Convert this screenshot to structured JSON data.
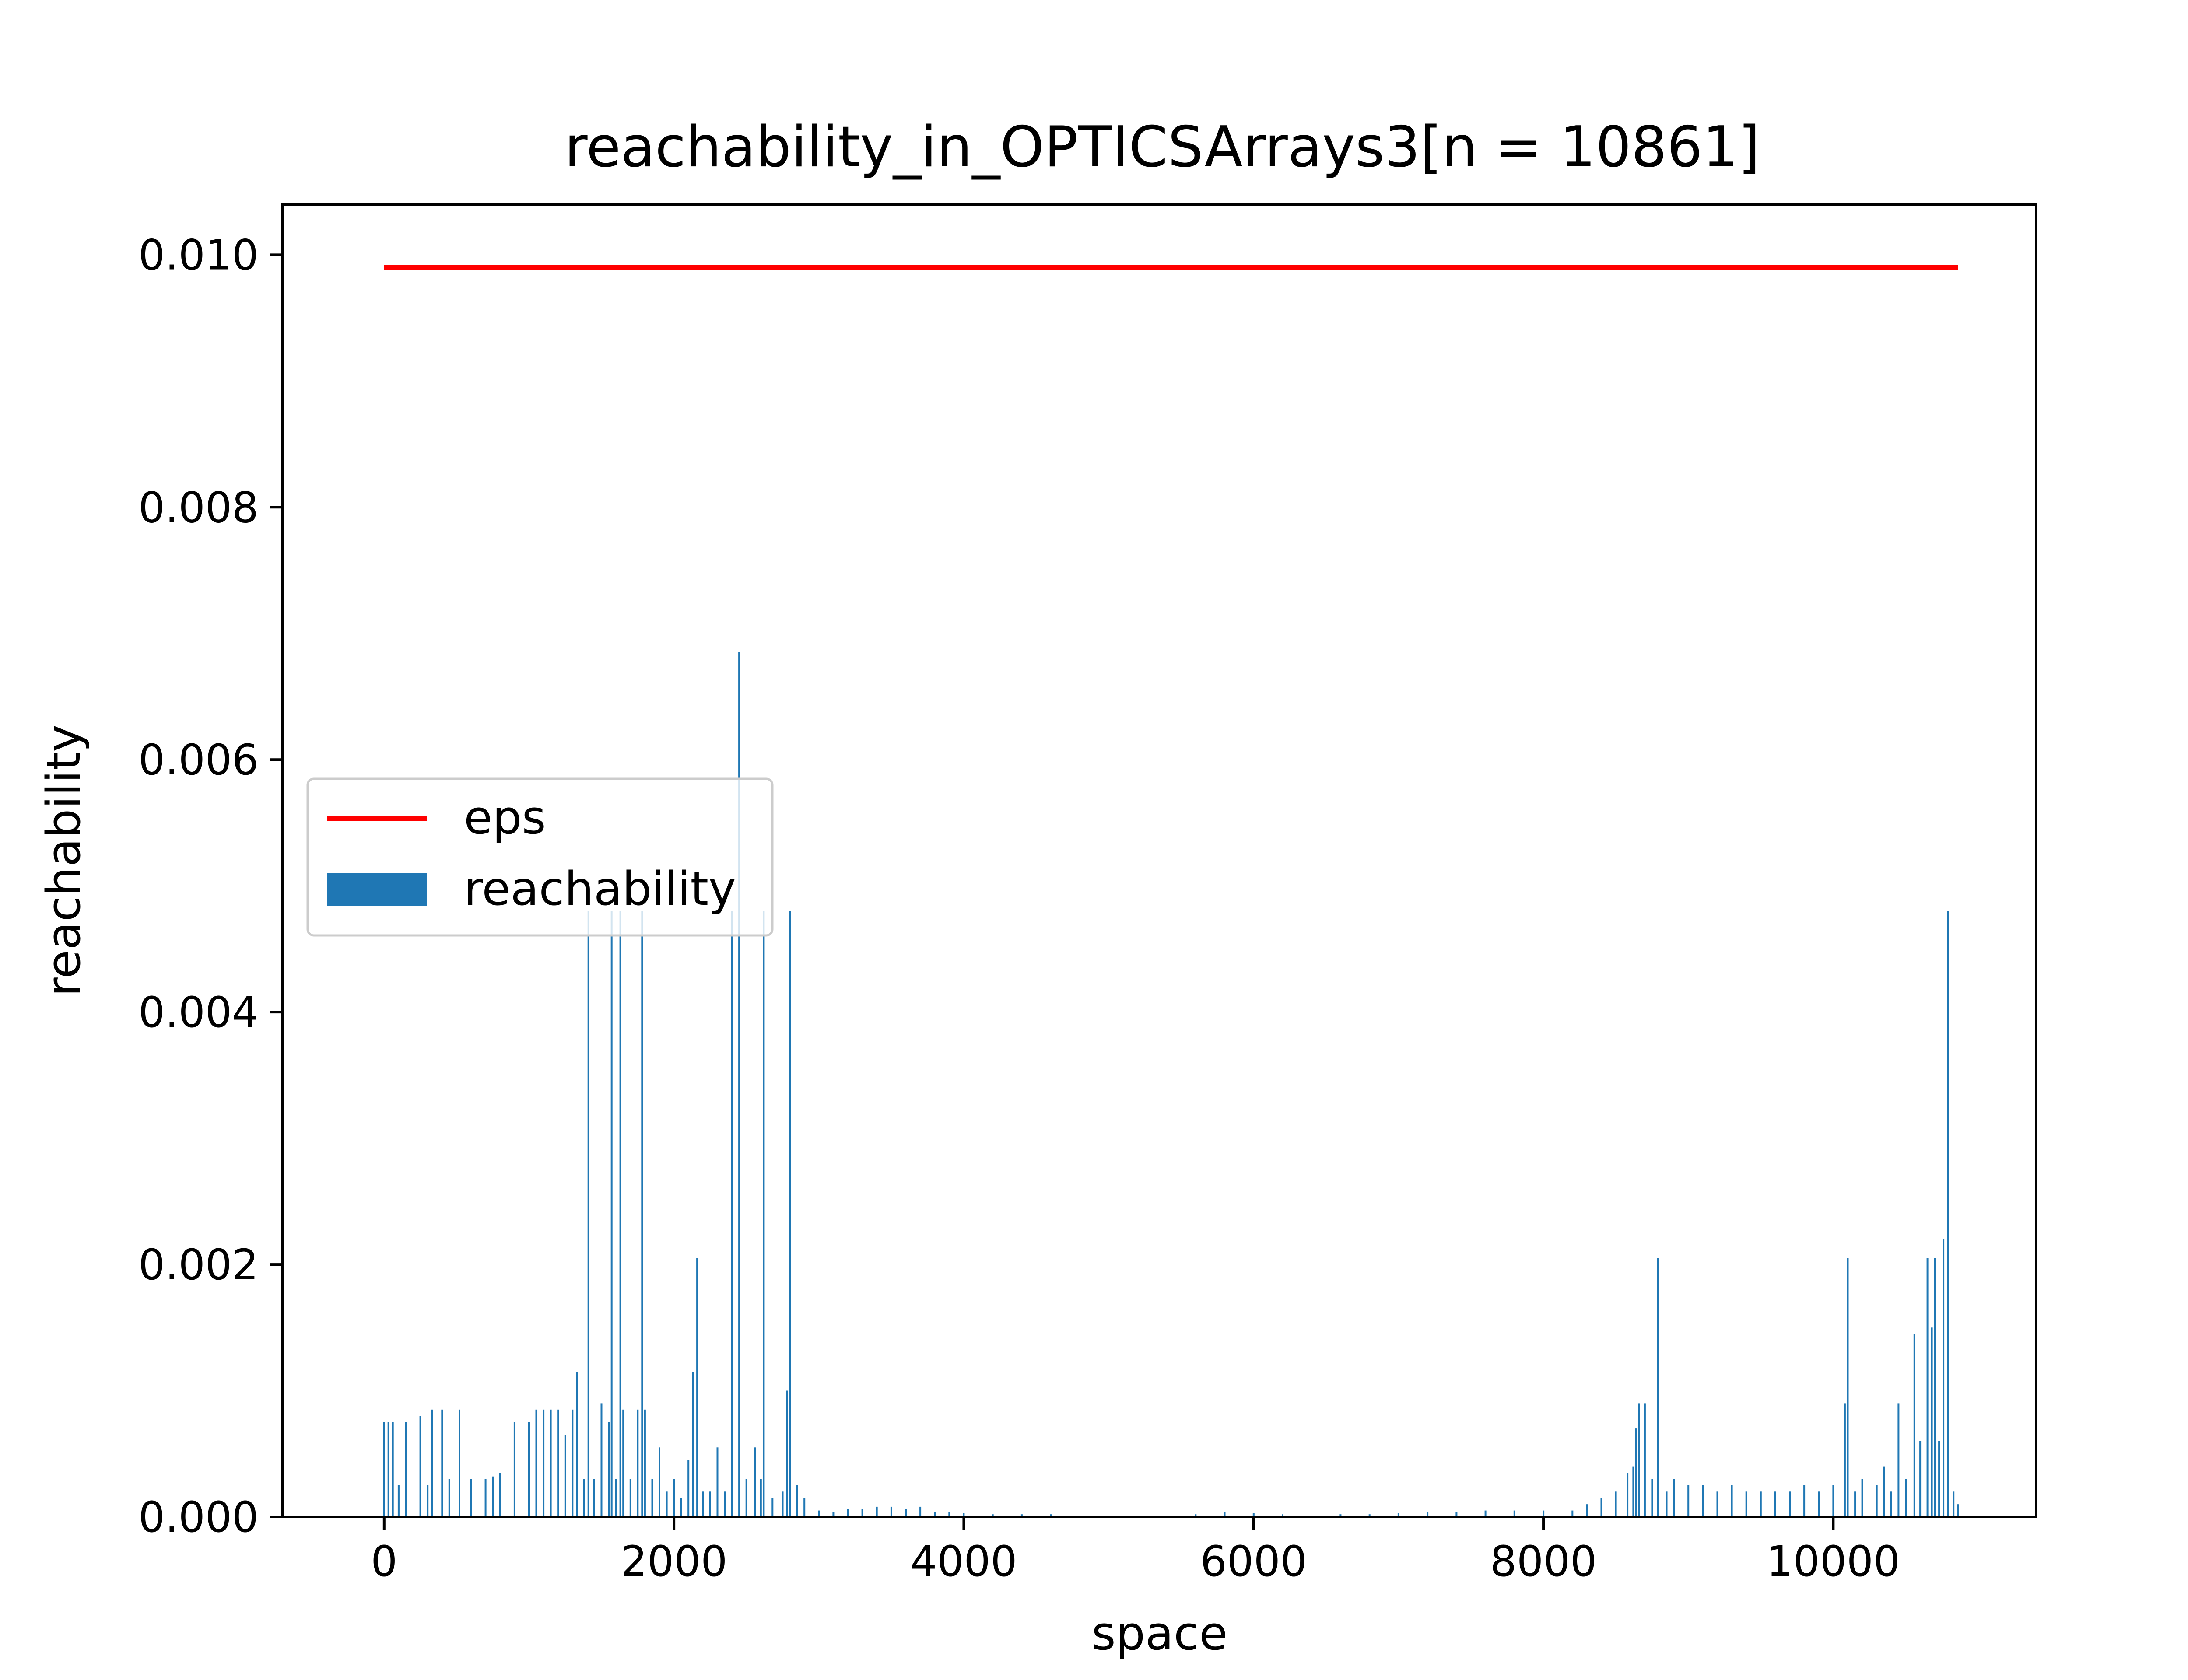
{
  "chart_data": {
    "type": "bar",
    "title": "reachability_in_OPTICSArrays3[n = 10861]",
    "xlabel": "space",
    "ylabel": "reachability",
    "xlim": [
      -700,
      11400
    ],
    "ylim": [
      0,
      0.0104
    ],
    "xticks": [
      0,
      2000,
      4000,
      6000,
      8000,
      10000
    ],
    "xtick_labels": [
      "0",
      "2000",
      "4000",
      "6000",
      "8000",
      "10000"
    ],
    "yticks": [
      0.0,
      0.002,
      0.004,
      0.006,
      0.008,
      0.01
    ],
    "ytick_labels": [
      "0.000",
      "0.002",
      "0.004",
      "0.006",
      "0.008",
      "0.010"
    ],
    "grid": false,
    "legend": {
      "position": "center-left",
      "entries": [
        "eps",
        "reachability"
      ]
    },
    "series": [
      {
        "name": "eps",
        "kind": "line",
        "color": "#ff0000",
        "x": [
          0,
          10860
        ],
        "y": [
          0.0099,
          0.0099
        ]
      },
      {
        "name": "reachability",
        "kind": "bar",
        "color": "#1f77b4",
        "points": [
          [
            0,
            0.00075
          ],
          [
            30,
            0.00075
          ],
          [
            60,
            0.00075
          ],
          [
            100,
            0.00025
          ],
          [
            150,
            0.00075
          ],
          [
            250,
            0.0008
          ],
          [
            300,
            0.00025
          ],
          [
            330,
            0.00085
          ],
          [
            400,
            0.00085
          ],
          [
            450,
            0.0003
          ],
          [
            520,
            0.00085
          ],
          [
            600,
            0.0003
          ],
          [
            700,
            0.0003
          ],
          [
            750,
            0.00032
          ],
          [
            800,
            0.00035
          ],
          [
            900,
            0.00075
          ],
          [
            1000,
            0.00075
          ],
          [
            1050,
            0.00085
          ],
          [
            1100,
            0.00085
          ],
          [
            1150,
            0.00085
          ],
          [
            1200,
            0.00085
          ],
          [
            1250,
            0.00065
          ],
          [
            1300,
            0.00085
          ],
          [
            1330,
            0.00115
          ],
          [
            1380,
            0.0003
          ],
          [
            1410,
            0.0048
          ],
          [
            1450,
            0.0003
          ],
          [
            1500,
            0.0009
          ],
          [
            1550,
            0.00075
          ],
          [
            1570,
            0.0048
          ],
          [
            1600,
            0.0003
          ],
          [
            1630,
            0.0048
          ],
          [
            1650,
            0.00085
          ],
          [
            1700,
            0.0003
          ],
          [
            1750,
            0.00085
          ],
          [
            1780,
            0.0048
          ],
          [
            1800,
            0.00085
          ],
          [
            1850,
            0.0003
          ],
          [
            1900,
            0.00055
          ],
          [
            1950,
            0.0002
          ],
          [
            2000,
            0.0003
          ],
          [
            2050,
            0.00015
          ],
          [
            2100,
            0.00045
          ],
          [
            2130,
            0.00115
          ],
          [
            2160,
            0.00205
          ],
          [
            2200,
            0.0002
          ],
          [
            2250,
            0.0002
          ],
          [
            2300,
            0.00055
          ],
          [
            2350,
            0.0002
          ],
          [
            2400,
            0.0048
          ],
          [
            2450,
            0.00685
          ],
          [
            2500,
            0.0003
          ],
          [
            2560,
            0.00055
          ],
          [
            2600,
            0.0003
          ],
          [
            2620,
            0.0048
          ],
          [
            2680,
            0.00015
          ],
          [
            2750,
            0.0002
          ],
          [
            2780,
            0.001
          ],
          [
            2800,
            0.0048
          ],
          [
            2850,
            0.00025
          ],
          [
            2900,
            0.00015
          ],
          [
            3000,
            5e-05
          ],
          [
            3100,
            4e-05
          ],
          [
            3200,
            6e-05
          ],
          [
            3300,
            6e-05
          ],
          [
            3400,
            8e-05
          ],
          [
            3500,
            8e-05
          ],
          [
            3600,
            6e-05
          ],
          [
            3700,
            8e-05
          ],
          [
            3800,
            4e-05
          ],
          [
            3900,
            4e-05
          ],
          [
            4000,
            3e-05
          ],
          [
            4200,
            2e-05
          ],
          [
            4400,
            2e-05
          ],
          [
            4600,
            2e-05
          ],
          [
            4800,
            1e-05
          ],
          [
            5000,
            1e-05
          ],
          [
            5200,
            1e-05
          ],
          [
            5400,
            1e-05
          ],
          [
            5600,
            2e-05
          ],
          [
            5800,
            4e-05
          ],
          [
            6000,
            3e-05
          ],
          [
            6200,
            2e-05
          ],
          [
            6400,
            1e-05
          ],
          [
            6600,
            2e-05
          ],
          [
            6800,
            2e-05
          ],
          [
            7000,
            3e-05
          ],
          [
            7200,
            4e-05
          ],
          [
            7400,
            4e-05
          ],
          [
            7600,
            5e-05
          ],
          [
            7800,
            5e-05
          ],
          [
            8000,
            5e-05
          ],
          [
            8200,
            5e-05
          ],
          [
            8300,
            0.0001
          ],
          [
            8400,
            0.00015
          ],
          [
            8500,
            0.0002
          ],
          [
            8580,
            0.00035
          ],
          [
            8620,
            0.0004
          ],
          [
            8640,
            0.0007
          ],
          [
            8660,
            0.0009
          ],
          [
            8700,
            0.0009
          ],
          [
            8750,
            0.0003
          ],
          [
            8790,
            0.00205
          ],
          [
            8850,
            0.0002
          ],
          [
            8900,
            0.0003
          ],
          [
            9000,
            0.00025
          ],
          [
            9100,
            0.00025
          ],
          [
            9200,
            0.0002
          ],
          [
            9300,
            0.00025
          ],
          [
            9400,
            0.0002
          ],
          [
            9500,
            0.0002
          ],
          [
            9600,
            0.0002
          ],
          [
            9700,
            0.0002
          ],
          [
            9800,
            0.00025
          ],
          [
            9900,
            0.0002
          ],
          [
            10000,
            0.00025
          ],
          [
            10080,
            0.0009
          ],
          [
            10100,
            0.00205
          ],
          [
            10150,
            0.0002
          ],
          [
            10200,
            0.0003
          ],
          [
            10300,
            0.00025
          ],
          [
            10350,
            0.0004
          ],
          [
            10400,
            0.0002
          ],
          [
            10450,
            0.0009
          ],
          [
            10500,
            0.0003
          ],
          [
            10560,
            0.00145
          ],
          [
            10600,
            0.0006
          ],
          [
            10650,
            0.00205
          ],
          [
            10680,
            0.0015
          ],
          [
            10700,
            0.00205
          ],
          [
            10730,
            0.0006
          ],
          [
            10760,
            0.0022
          ],
          [
            10790,
            0.0048
          ],
          [
            10830,
            0.0002
          ],
          [
            10860,
            0.0001
          ]
        ]
      }
    ]
  }
}
